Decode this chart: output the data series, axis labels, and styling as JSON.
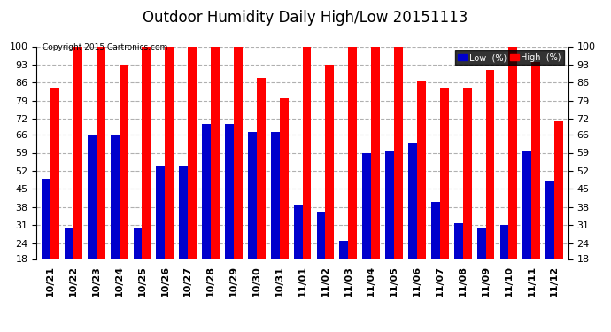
{
  "title": "Outdoor Humidity Daily High/Low 20151113",
  "copyright": "Copyright 2015 Cartronics.com",
  "categories": [
    "10/21",
    "10/22",
    "10/23",
    "10/24",
    "10/25",
    "10/26",
    "10/27",
    "10/28",
    "10/29",
    "10/30",
    "10/31",
    "11/01",
    "11/02",
    "11/03",
    "11/04",
    "11/05",
    "11/06",
    "11/07",
    "11/08",
    "11/09",
    "11/10",
    "11/11",
    "11/12"
  ],
  "high_values": [
    84,
    100,
    100,
    93,
    100,
    100,
    100,
    100,
    100,
    88,
    80,
    100,
    93,
    100,
    100,
    100,
    87,
    84,
    84,
    91,
    100,
    94,
    71
  ],
  "low_values": [
    49,
    30,
    66,
    66,
    30,
    54,
    54,
    70,
    70,
    67,
    67,
    39,
    36,
    25,
    59,
    60,
    63,
    40,
    32,
    30,
    31,
    60,
    48
  ],
  "high_color": "#ff0000",
  "low_color": "#0000cc",
  "background_color": "#ffffff",
  "grid_color": "#b0b0b0",
  "ylim": [
    18,
    100
  ],
  "yticks": [
    18,
    24,
    31,
    38,
    45,
    52,
    59,
    66,
    72,
    79,
    86,
    93,
    100
  ],
  "bar_width": 0.38,
  "title_fontsize": 12,
  "tick_fontsize": 8,
  "ybase": 18
}
